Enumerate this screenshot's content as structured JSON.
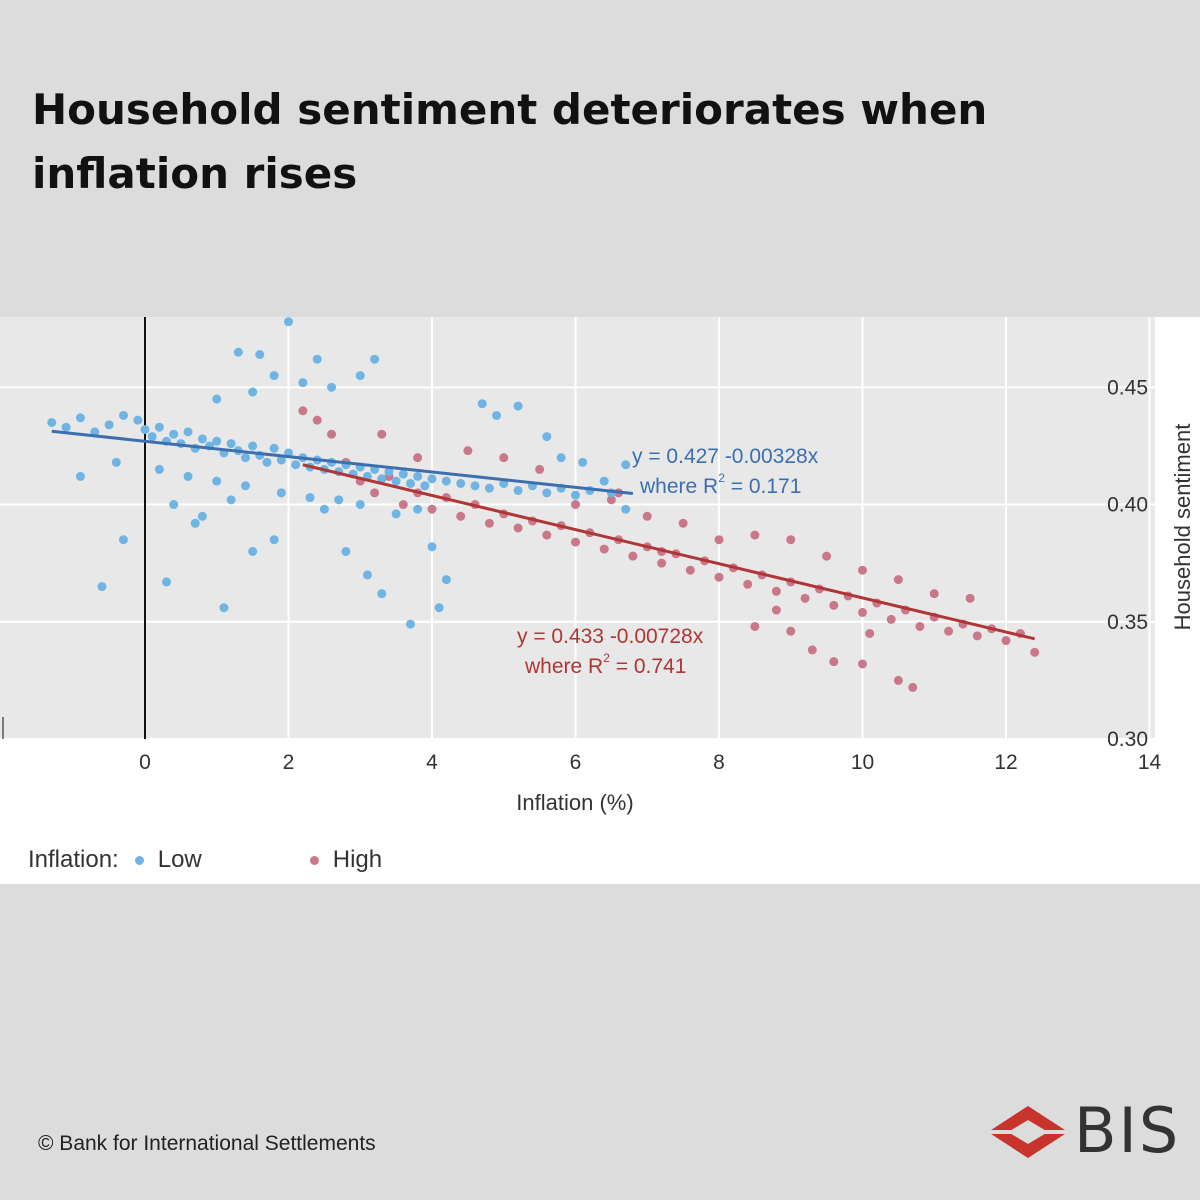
{
  "title": "Household sentiment deteriorates when inflation rises",
  "copyright": "© Bank for International Settlements",
  "logo_text": "BIS",
  "legend": {
    "prefix": "Inflation:",
    "low": "Low",
    "high": "High"
  },
  "colors": {
    "low": "#6fb4e3",
    "high": "#c9788a",
    "low_line": "#3c6fb0",
    "high_line": "#b03535"
  },
  "chart_data": {
    "type": "scatter",
    "xlabel": "Inflation (%)",
    "ylabel": "Household sentiment",
    "xlim": [
      -2,
      14
    ],
    "ylim": [
      0.3,
      0.48
    ],
    "x_ticks": [
      "0",
      "2",
      "4",
      "6",
      "8",
      "10",
      "12",
      "14"
    ],
    "y_ticks": [
      "0.30",
      "0.35",
      "0.40",
      "0.45"
    ],
    "grid": true,
    "legend_position": "bottom-left",
    "series": [
      {
        "name": "Low",
        "fit": {
          "intercept": 0.427,
          "slope": -0.00328,
          "r2": 0.171,
          "x_range": [
            -1.3,
            6.8
          ]
        },
        "equation_line1": "y = 0.427 -0.00328x",
        "equation_line2_prefix": "where R",
        "equation_line2_suffix": " = 0.171",
        "points": [
          [
            -1.3,
            0.435
          ],
          [
            -1.1,
            0.433
          ],
          [
            -0.9,
            0.437
          ],
          [
            -0.7,
            0.431
          ],
          [
            -0.5,
            0.434
          ],
          [
            -0.3,
            0.438
          ],
          [
            -0.1,
            0.436
          ],
          [
            0.0,
            0.432
          ],
          [
            0.1,
            0.429
          ],
          [
            0.2,
            0.433
          ],
          [
            0.3,
            0.427
          ],
          [
            0.4,
            0.43
          ],
          [
            0.5,
            0.426
          ],
          [
            0.6,
            0.431
          ],
          [
            0.7,
            0.424
          ],
          [
            0.8,
            0.428
          ],
          [
            0.9,
            0.425
          ],
          [
            1.0,
            0.427
          ],
          [
            1.1,
            0.422
          ],
          [
            1.2,
            0.426
          ],
          [
            1.3,
            0.423
          ],
          [
            1.4,
            0.42
          ],
          [
            1.5,
            0.425
          ],
          [
            1.6,
            0.421
          ],
          [
            1.7,
            0.418
          ],
          [
            1.8,
            0.424
          ],
          [
            1.9,
            0.419
          ],
          [
            2.0,
            0.422
          ],
          [
            2.1,
            0.417
          ],
          [
            2.2,
            0.42
          ],
          [
            2.3,
            0.416
          ],
          [
            2.4,
            0.419
          ],
          [
            2.5,
            0.415
          ],
          [
            2.6,
            0.418
          ],
          [
            2.7,
            0.414
          ],
          [
            2.8,
            0.417
          ],
          [
            2.9,
            0.413
          ],
          [
            3.0,
            0.416
          ],
          [
            3.1,
            0.412
          ],
          [
            3.2,
            0.415
          ],
          [
            3.3,
            0.411
          ],
          [
            3.4,
            0.414
          ],
          [
            3.5,
            0.41
          ],
          [
            3.6,
            0.413
          ],
          [
            3.7,
            0.409
          ],
          [
            3.8,
            0.412
          ],
          [
            3.9,
            0.408
          ],
          [
            4.0,
            0.411
          ],
          [
            4.2,
            0.41
          ],
          [
            4.4,
            0.409
          ],
          [
            4.6,
            0.408
          ],
          [
            4.8,
            0.407
          ],
          [
            5.0,
            0.409
          ],
          [
            5.2,
            0.406
          ],
          [
            5.4,
            0.408
          ],
          [
            5.6,
            0.405
          ],
          [
            5.8,
            0.407
          ],
          [
            6.0,
            0.404
          ],
          [
            6.2,
            0.406
          ],
          [
            6.5,
            0.405
          ],
          [
            6.7,
            0.417
          ],
          [
            -0.6,
            0.365
          ],
          [
            -0.3,
            0.385
          ],
          [
            0.3,
            0.367
          ],
          [
            0.8,
            0.395
          ],
          [
            1.1,
            0.356
          ],
          [
            1.3,
            0.465
          ],
          [
            1.6,
            0.464
          ],
          [
            2.0,
            0.478
          ],
          [
            2.4,
            0.462
          ],
          [
            2.6,
            0.45
          ],
          [
            3.0,
            0.455
          ],
          [
            3.2,
            0.462
          ],
          [
            1.0,
            0.445
          ],
          [
            1.5,
            0.448
          ],
          [
            1.8,
            0.455
          ],
          [
            2.2,
            0.452
          ],
          [
            0.4,
            0.4
          ],
          [
            0.7,
            0.392
          ],
          [
            1.2,
            0.402
          ],
          [
            1.5,
            0.38
          ],
          [
            1.8,
            0.385
          ],
          [
            2.5,
            0.398
          ],
          [
            2.8,
            0.38
          ],
          [
            3.1,
            0.37
          ],
          [
            3.3,
            0.362
          ],
          [
            3.7,
            0.349
          ],
          [
            4.0,
            0.382
          ],
          [
            4.1,
            0.356
          ],
          [
            4.2,
            0.368
          ],
          [
            4.7,
            0.443
          ],
          [
            4.9,
            0.438
          ],
          [
            5.2,
            0.442
          ],
          [
            5.6,
            0.429
          ],
          [
            5.8,
            0.42
          ],
          [
            6.1,
            0.418
          ],
          [
            6.4,
            0.41
          ],
          [
            6.7,
            0.398
          ],
          [
            3.5,
            0.396
          ],
          [
            3.8,
            0.398
          ],
          [
            -0.9,
            0.412
          ],
          [
            -0.4,
            0.418
          ],
          [
            0.2,
            0.415
          ],
          [
            0.6,
            0.412
          ],
          [
            1.0,
            0.41
          ],
          [
            1.4,
            0.408
          ],
          [
            1.9,
            0.405
          ],
          [
            2.3,
            0.403
          ],
          [
            2.7,
            0.402
          ],
          [
            3.0,
            0.4
          ]
        ]
      },
      {
        "name": "High",
        "fit": {
          "intercept": 0.433,
          "slope": -0.00728,
          "r2": 0.741,
          "x_range": [
            2.2,
            12.4
          ]
        },
        "equation_line1": "y = 0.433 -0.00728x",
        "equation_line2_prefix": "where R",
        "equation_line2_suffix": " = 0.741",
        "points": [
          [
            2.2,
            0.44
          ],
          [
            2.4,
            0.436
          ],
          [
            2.6,
            0.43
          ],
          [
            2.8,
            0.418
          ],
          [
            3.0,
            0.41
          ],
          [
            3.2,
            0.405
          ],
          [
            3.4,
            0.412
          ],
          [
            3.6,
            0.4
          ],
          [
            3.8,
            0.405
          ],
          [
            4.0,
            0.398
          ],
          [
            4.2,
            0.403
          ],
          [
            4.4,
            0.395
          ],
          [
            4.6,
            0.4
          ],
          [
            4.8,
            0.392
          ],
          [
            5.0,
            0.396
          ],
          [
            5.2,
            0.39
          ],
          [
            5.4,
            0.393
          ],
          [
            5.6,
            0.387
          ],
          [
            5.8,
            0.391
          ],
          [
            6.0,
            0.384
          ],
          [
            6.2,
            0.388
          ],
          [
            6.4,
            0.381
          ],
          [
            6.6,
            0.385
          ],
          [
            6.8,
            0.378
          ],
          [
            7.0,
            0.382
          ],
          [
            7.2,
            0.375
          ],
          [
            7.4,
            0.379
          ],
          [
            7.6,
            0.372
          ],
          [
            7.8,
            0.376
          ],
          [
            8.0,
            0.369
          ],
          [
            8.2,
            0.373
          ],
          [
            8.4,
            0.366
          ],
          [
            8.6,
            0.37
          ],
          [
            8.8,
            0.363
          ],
          [
            9.0,
            0.367
          ],
          [
            9.2,
            0.36
          ],
          [
            9.4,
            0.364
          ],
          [
            9.6,
            0.357
          ],
          [
            9.8,
            0.361
          ],
          [
            10.0,
            0.354
          ],
          [
            10.2,
            0.358
          ],
          [
            10.4,
            0.351
          ],
          [
            10.6,
            0.355
          ],
          [
            10.8,
            0.348
          ],
          [
            11.0,
            0.352
          ],
          [
            11.2,
            0.346
          ],
          [
            11.4,
            0.349
          ],
          [
            11.6,
            0.344
          ],
          [
            11.8,
            0.347
          ],
          [
            12.0,
            0.342
          ],
          [
            12.2,
            0.345
          ],
          [
            12.4,
            0.337
          ],
          [
            6.0,
            0.4
          ],
          [
            6.5,
            0.402
          ],
          [
            7.0,
            0.395
          ],
          [
            7.5,
            0.392
          ],
          [
            8.0,
            0.385
          ],
          [
            8.5,
            0.387
          ],
          [
            9.0,
            0.385
          ],
          [
            9.5,
            0.378
          ],
          [
            10.0,
            0.372
          ],
          [
            10.5,
            0.368
          ],
          [
            11.0,
            0.362
          ],
          [
            9.3,
            0.338
          ],
          [
            9.6,
            0.333
          ],
          [
            10.0,
            0.332
          ],
          [
            10.5,
            0.325
          ],
          [
            10.7,
            0.322
          ],
          [
            8.5,
            0.348
          ],
          [
            9.0,
            0.346
          ],
          [
            5.5,
            0.415
          ],
          [
            5.0,
            0.42
          ],
          [
            4.5,
            0.423
          ],
          [
            3.8,
            0.42
          ],
          [
            3.3,
            0.43
          ],
          [
            7.2,
            0.38
          ],
          [
            8.8,
            0.355
          ],
          [
            11.5,
            0.36
          ],
          [
            10.1,
            0.345
          ],
          [
            6.6,
            0.405
          ]
        ]
      }
    ]
  }
}
